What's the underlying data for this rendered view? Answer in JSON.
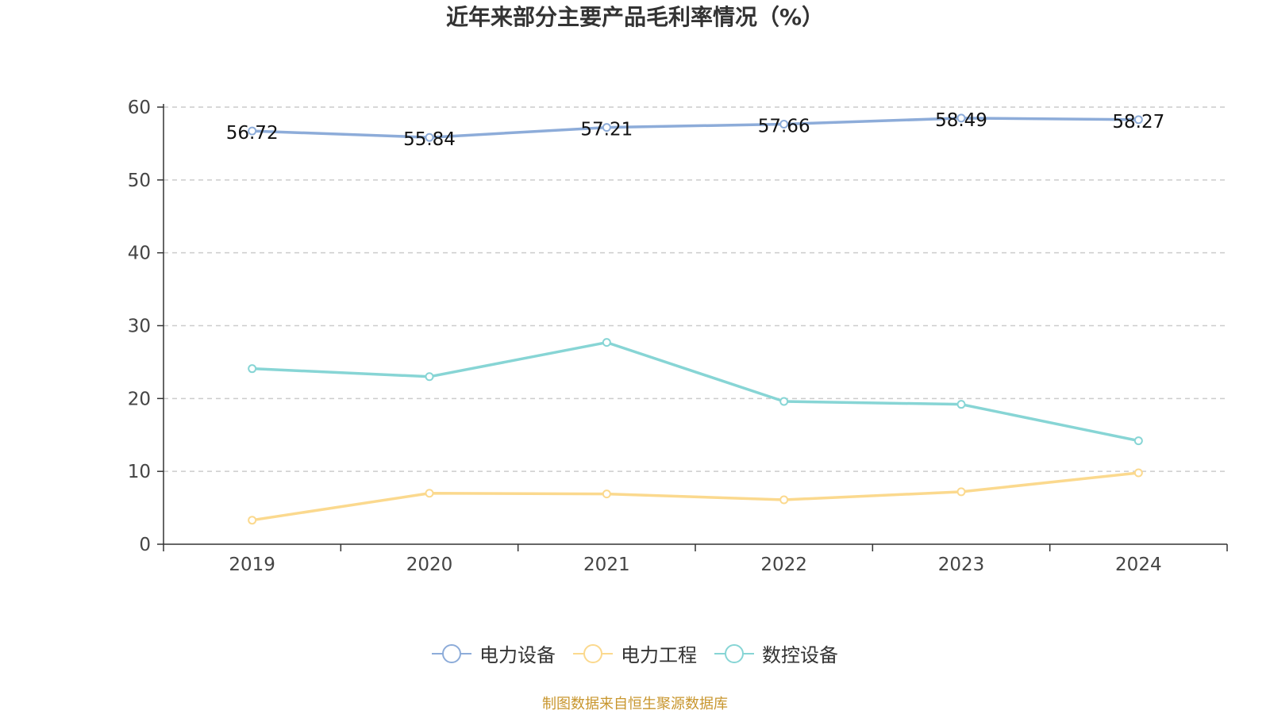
{
  "title": "近年来部分主要产品毛利率情况（%）",
  "source": "制图数据来自恒生聚源数据库",
  "chart_data": {
    "type": "line",
    "title": "近年来部分主要产品毛利率情况（%）",
    "xlabel": "",
    "ylabel": "",
    "categories": [
      "2019",
      "2020",
      "2021",
      "2022",
      "2023",
      "2024"
    ],
    "ylim": [
      0,
      60
    ],
    "yticks": [
      0,
      10,
      20,
      30,
      40,
      50,
      60
    ],
    "grid": true,
    "legend_position": "bottom",
    "series": [
      {
        "name": "电力设备",
        "values": [
          56.72,
          55.84,
          57.21,
          57.66,
          58.49,
          58.27
        ],
        "color": "#8dacd9",
        "labels_shown": true
      },
      {
        "name": "电力工程",
        "values": [
          3.3,
          7.0,
          6.9,
          6.1,
          7.2,
          9.8
        ],
        "color": "#fbd98e",
        "labels_shown": false
      },
      {
        "name": "数控设备",
        "values": [
          24.1,
          23.0,
          27.7,
          19.6,
          19.2,
          14.2
        ],
        "color": "#87d5d5",
        "labels_shown": false
      }
    ]
  }
}
